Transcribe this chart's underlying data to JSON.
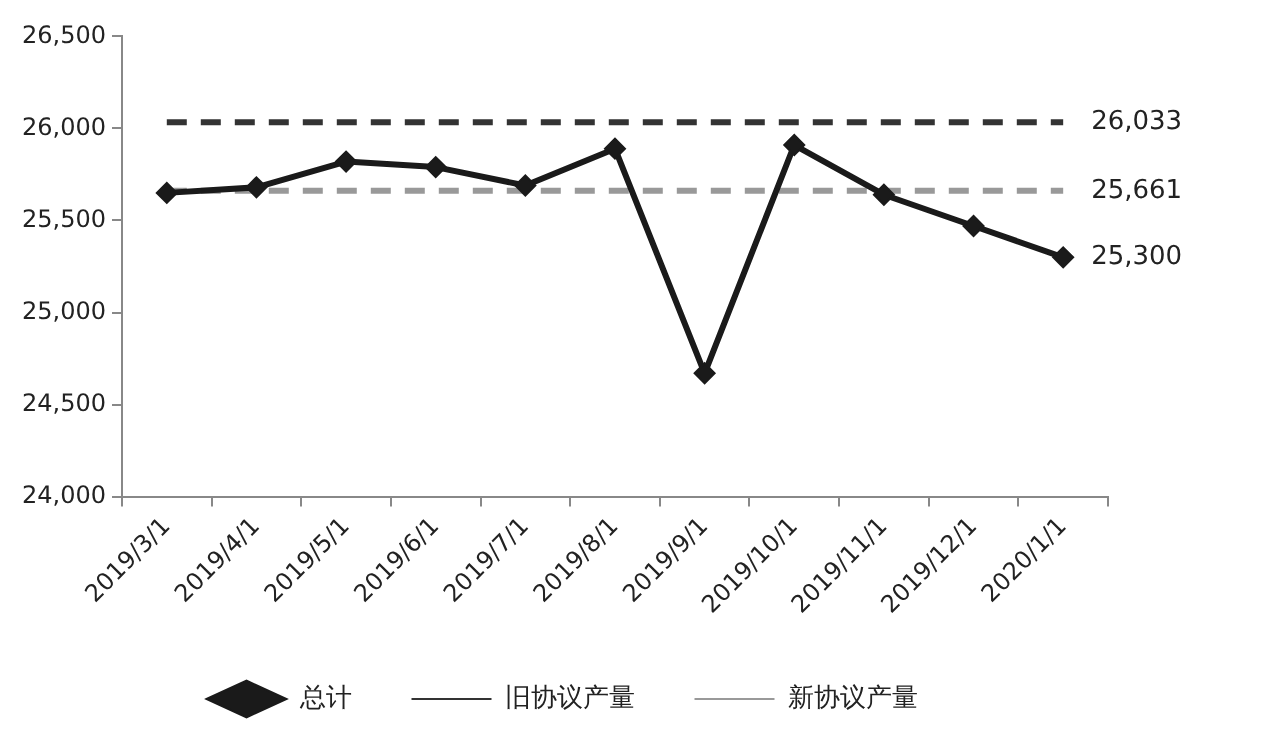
{
  "chart_data": {
    "type": "line",
    "categories": [
      "2019/3/1",
      "2019/4/1",
      "2019/5/1",
      "2019/6/1",
      "2019/7/1",
      "2019/8/1",
      "2019/9/1",
      "2019/10/1",
      "2019/11/1",
      "2019/12/1",
      "2020/1/1"
    ],
    "series": [
      {
        "name": "总计",
        "color": "#1a1a1a",
        "marker": "diamond",
        "line_style": "solid",
        "values": [
          25650,
          25680,
          25820,
          25790,
          25690,
          25890,
          24670,
          25910,
          25640,
          25470,
          25300
        ]
      },
      {
        "name": "旧协议产量",
        "color": "#333333",
        "marker": "none",
        "line_style": "dashed",
        "values": [
          26033,
          26033,
          26033,
          26033,
          26033,
          26033,
          26033,
          26033,
          26033,
          26033,
          26033
        ]
      },
      {
        "name": "新协议产量",
        "color": "#999999",
        "marker": "none",
        "line_style": "dashed",
        "values": [
          25661,
          25661,
          25661,
          25661,
          25661,
          25661,
          25661,
          25661,
          25661,
          25661,
          25661
        ]
      }
    ],
    "annotations": [
      {
        "text": "26,033",
        "x": "2020/1/1",
        "y": 26033
      },
      {
        "text": "25,661",
        "x": "2020/1/1",
        "y": 25661
      },
      {
        "text": "25,300",
        "x": "2020/1/1",
        "y": 25300
      }
    ],
    "ylim": [
      24000,
      26500
    ],
    "yticks": [
      {
        "value": 24000,
        "label": "24,000"
      },
      {
        "value": 24500,
        "label": "24,500"
      },
      {
        "value": 25000,
        "label": "25,000"
      },
      {
        "value": 25500,
        "label": "25,500"
      },
      {
        "value": 26000,
        "label": "26,000"
      },
      {
        "value": 26500,
        "label": "26,500"
      }
    ],
    "grid": false,
    "legend": "bottom"
  }
}
